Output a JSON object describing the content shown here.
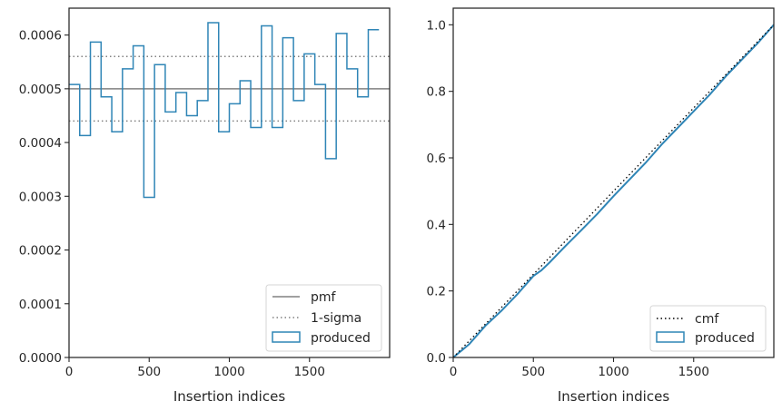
{
  "chart_data": [
    {
      "type": "histogram-step",
      "xlabel": "Insertion indices",
      "ylabel": "",
      "xlim": [
        0,
        2000
      ],
      "ylim": [
        0,
        0.00065
      ],
      "xticks": [
        0,
        500,
        1000,
        1500
      ],
      "xtick_labels": [
        "0",
        "500",
        "1000",
        "1500"
      ],
      "yticks": [
        0,
        0.0001,
        0.0002,
        0.0003,
        0.0004,
        0.0005,
        0.0006
      ],
      "ytick_labels": [
        "0.0000",
        "0.0001",
        "0.0002",
        "0.0003",
        "0.0004",
        "0.0005",
        "0.0006"
      ],
      "bin_width": 66.67,
      "values": [
        0.000508,
        0.000413,
        0.000587,
        0.000485,
        0.00042,
        0.000537,
        0.00058,
        0.000298,
        0.000545,
        0.000457,
        0.000493,
        0.00045,
        0.000478,
        0.000623,
        0.00042,
        0.000472,
        0.000515,
        0.000428,
        0.000617,
        0.000428,
        0.000595,
        0.000478,
        0.000565,
        0.000508,
        0.00037,
        0.000603,
        0.000537,
        0.000485,
        0.00061
      ],
      "pmf": 0.0005,
      "sigma_band": [
        0.00044,
        0.00056
      ],
      "legend": {
        "position": "lower-right",
        "entries": [
          {
            "label": "pmf",
            "style": "solid",
            "color": "#808080"
          },
          {
            "label": "1-sigma",
            "style": "dotted",
            "color": "#808080"
          },
          {
            "label": "produced",
            "style": "step-box",
            "color": "#2f85b6"
          }
        ]
      },
      "grid": false
    },
    {
      "type": "line",
      "xlabel": "Insertion indices",
      "ylabel": "",
      "xlim": [
        0,
        2000
      ],
      "ylim": [
        0,
        1.05
      ],
      "xticks": [
        0,
        500,
        1000,
        1500
      ],
      "xtick_labels": [
        "0",
        "500",
        "1000",
        "1500"
      ],
      "yticks": [
        0,
        0.2,
        0.4,
        0.6,
        0.8,
        1.0
      ],
      "ytick_labels": [
        "0.0",
        "0.2",
        "0.4",
        "0.6",
        "0.8",
        "1.0"
      ],
      "cmf": {
        "x": [
          0,
          2000
        ],
        "y": [
          0,
          1.0
        ]
      },
      "produced": {
        "x": [
          0,
          100,
          200,
          300,
          400,
          500,
          550,
          600,
          700,
          800,
          900,
          1000,
          1100,
          1200,
          1300,
          1400,
          1500,
          1600,
          1700,
          1800,
          1900,
          2000
        ],
        "y": [
          0,
          0.04,
          0.095,
          0.14,
          0.19,
          0.245,
          0.262,
          0.285,
          0.335,
          0.383,
          0.432,
          0.485,
          0.535,
          0.585,
          0.64,
          0.69,
          0.74,
          0.79,
          0.845,
          0.895,
          0.945,
          1.0
        ]
      },
      "legend": {
        "position": "lower-right",
        "entries": [
          {
            "label": "cmf",
            "style": "dotted",
            "color": "#000000"
          },
          {
            "label": "produced",
            "style": "step-box",
            "color": "#2f85b6"
          }
        ]
      },
      "grid": false
    }
  ]
}
